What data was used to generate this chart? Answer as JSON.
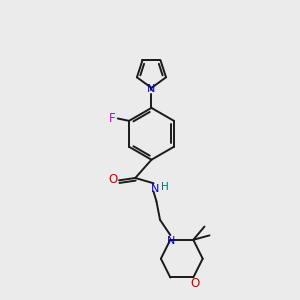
{
  "background_color": "#ebebeb",
  "bond_color": "#1a1a1a",
  "atom_colors": {
    "N": "#0000cc",
    "O": "#cc0000",
    "F": "#cc00cc",
    "H": "#007070"
  },
  "lw": 1.4
}
